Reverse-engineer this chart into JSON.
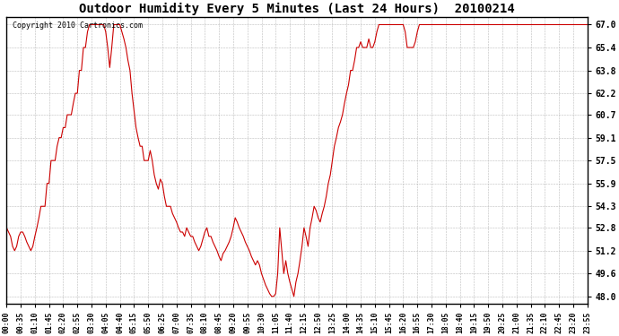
{
  "title": "Outdoor Humidity Every 5 Minutes (Last 24 Hours)  20100214",
  "copyright": "Copyright 2010 Cartronics.com",
  "line_color": "#cc0000",
  "bg_color": "#ffffff",
  "grid_color": "#aaaaaa",
  "yticks": [
    48.0,
    49.6,
    51.2,
    52.8,
    54.3,
    55.9,
    57.5,
    59.1,
    60.7,
    62.2,
    63.8,
    65.4,
    67.0
  ],
  "ylim": [
    47.5,
    67.5
  ],
  "x_labels": [
    "00:00",
    "00:35",
    "01:10",
    "01:45",
    "02:20",
    "02:55",
    "03:30",
    "04:05",
    "04:40",
    "05:15",
    "05:50",
    "06:25",
    "07:00",
    "07:35",
    "08:10",
    "08:45",
    "09:20",
    "09:55",
    "10:30",
    "11:05",
    "11:40",
    "12:15",
    "12:50",
    "13:25",
    "14:00",
    "14:35",
    "15:10",
    "15:45",
    "16:20",
    "16:55",
    "17:30",
    "18:05",
    "18:40",
    "19:15",
    "19:50",
    "20:25",
    "21:00",
    "21:35",
    "22:10",
    "22:45",
    "23:20",
    "23:55"
  ],
  "humidity": [
    52.8,
    52.5,
    52.2,
    51.5,
    51.2,
    51.5,
    52.2,
    52.5,
    52.5,
    52.2,
    51.8,
    51.5,
    51.2,
    51.5,
    52.2,
    52.8,
    53.5,
    54.3,
    54.3,
    54.3,
    55.9,
    55.9,
    57.5,
    57.5,
    57.5,
    58.5,
    59.1,
    59.1,
    59.8,
    59.8,
    60.7,
    60.7,
    60.7,
    61.5,
    62.2,
    62.2,
    63.8,
    63.8,
    65.4,
    65.4,
    66.5,
    67.0,
    67.0,
    67.0,
    67.0,
    67.0,
    67.0,
    67.0,
    67.0,
    66.5,
    65.4,
    64.0,
    65.4,
    67.0,
    67.0,
    67.0,
    67.0,
    66.5,
    66.0,
    65.4,
    64.5,
    63.8,
    62.2,
    61.0,
    59.8,
    59.1,
    58.5,
    58.5,
    57.5,
    57.5,
    57.5,
    58.2,
    57.5,
    56.5,
    55.9,
    55.5,
    56.2,
    55.9,
    55.0,
    54.3,
    54.3,
    54.3,
    53.8,
    53.5,
    53.2,
    52.8,
    52.5,
    52.5,
    52.2,
    52.8,
    52.5,
    52.2,
    52.2,
    51.8,
    51.5,
    51.2,
    51.5,
    52.0,
    52.5,
    52.8,
    52.2,
    52.2,
    51.8,
    51.5,
    51.2,
    50.8,
    50.5,
    51.0,
    51.2,
    51.5,
    51.8,
    52.2,
    52.8,
    53.5,
    53.2,
    52.8,
    52.5,
    52.2,
    51.8,
    51.5,
    51.2,
    50.8,
    50.5,
    50.2,
    50.5,
    50.2,
    49.6,
    49.2,
    48.8,
    48.5,
    48.2,
    48.0,
    48.0,
    48.2,
    49.6,
    52.8,
    51.2,
    49.6,
    50.5,
    49.6,
    49.0,
    48.5,
    48.0,
    49.0,
    49.6,
    50.5,
    51.5,
    52.8,
    52.2,
    51.5,
    52.8,
    53.5,
    54.3,
    54.0,
    53.5,
    53.2,
    53.8,
    54.3,
    55.0,
    55.9,
    56.5,
    57.5,
    58.5,
    59.1,
    59.8,
    60.2,
    60.7,
    61.5,
    62.2,
    62.8,
    63.8,
    63.8,
    64.5,
    65.4,
    65.4,
    65.8,
    65.4,
    65.4,
    65.4,
    66.0,
    65.4,
    65.4,
    65.8,
    66.5,
    67.0,
    67.0,
    67.0,
    67.0,
    67.0,
    67.0,
    67.0,
    67.0,
    67.0,
    67.0,
    67.0,
    67.0,
    67.0,
    66.5,
    65.4,
    65.4,
    65.4,
    65.4,
    65.8,
    66.5,
    67.0,
    67.0,
    67.0,
    67.0,
    67.0,
    67.0,
    67.0,
    67.0,
    67.0,
    67.0,
    67.0,
    67.0,
    67.0,
    67.0,
    67.0,
    67.0,
    67.0,
    67.0,
    67.0,
    67.0,
    67.0,
    67.0,
    67.0,
    67.0,
    67.0,
    67.0,
    67.0,
    67.0,
    67.0,
    67.0,
    67.0,
    67.0,
    67.0,
    67.0,
    67.0,
    67.0,
    67.0,
    67.0,
    67.0,
    67.0,
    67.0,
    67.0,
    67.0,
    67.0,
    67.0,
    67.0,
    67.0,
    67.0,
    67.0,
    67.0,
    67.0,
    67.0,
    67.0,
    67.0,
    67.0,
    67.0,
    67.0,
    67.0,
    67.0,
    67.0,
    67.0,
    67.0,
    67.0,
    67.0,
    67.0,
    67.0,
    67.0,
    67.0,
    67.0,
    67.0,
    67.0,
    67.0,
    67.0,
    67.0,
    67.0,
    67.0,
    67.0,
    67.0,
    67.0,
    67.0,
    67.0,
    67.0,
    67.0,
    67.0
  ]
}
